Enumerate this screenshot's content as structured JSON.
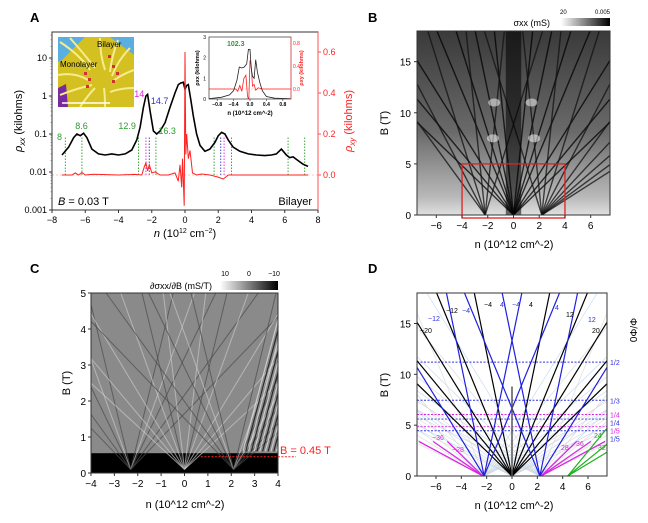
{
  "chart_data": [
    {
      "panel": "A",
      "type": "line",
      "panel_label": "A",
      "xlabel": "n (10^12 cm^-2)",
      "xlabel_parts": {
        "var": "n",
        "pre": " (10",
        "sup1": "12",
        "mid": " cm",
        "sup2": "−2",
        "post": ")"
      },
      "ylabel_left": "ρxx (kilohms)",
      "ylabel_left_parts": {
        "sym": "ρ",
        "sub": "xx",
        "rest": " (kilohms)"
      },
      "ylabel_right": "ρxy (kilohms)",
      "ylabel_right_parts": {
        "sym": "ρ",
        "sub": "xy",
        "rest": " (kilohms)"
      },
      "xlim": [
        -8,
        8
      ],
      "ylim_left": [
        0.001,
        50
      ],
      "yscale_left": "log",
      "ylim_right": [
        -0.17,
        0.72
      ],
      "xticks": [
        "−8",
        "−6",
        "−4",
        "−2",
        "0",
        "2",
        "4",
        "6",
        "8"
      ],
      "xtick_values": [
        -8,
        -6,
        -4,
        -2,
        0,
        2,
        4,
        6,
        8
      ],
      "yticks_left": [
        "0.001",
        "0.01",
        "0.1",
        "1",
        "10"
      ],
      "ytick_left_values": [
        0.001,
        0.01,
        0.1,
        1,
        10
      ],
      "yticks_right": [
        "0.0",
        "0.2",
        "0.4",
        "0.6"
      ],
      "ytick_right_values": [
        0.0,
        0.2,
        0.4,
        0.6
      ],
      "annotation_field": "B = 0.03 T",
      "annotation_field_parts": {
        "var": "B",
        "rest": " = 0.03 T"
      },
      "annotation_sample": "Bilayer",
      "series": [
        {
          "name": "ρxx",
          "color": "#000000",
          "axis": "left",
          "x": [
            -7.4,
            -7.0,
            -6.7,
            -6.5,
            -6.3,
            -6.1,
            -5.9,
            -5.6,
            -5.2,
            -4.8,
            -4.4,
            -4.0,
            -3.6,
            -3.2,
            -2.9,
            -2.7,
            -2.5,
            -2.35,
            -2.25,
            -2.1,
            -1.9,
            -1.7,
            -1.5,
            -1.2,
            -0.9,
            -0.6,
            -0.4,
            -0.25,
            -0.1,
            0.0,
            0.1,
            0.2,
            0.35,
            0.5,
            0.7,
            0.9,
            1.2,
            1.5,
            1.8,
            2.0,
            2.2,
            2.4,
            2.6,
            2.9,
            3.3,
            3.8,
            4.3,
            4.8,
            5.2,
            5.5,
            5.8,
            6.1,
            6.3,
            6.5,
            6.8,
            7.1,
            7.4
          ],
          "y": [
            0.028,
            0.045,
            0.08,
            0.1,
            0.09,
            0.105,
            0.08,
            0.04,
            0.03,
            0.028,
            0.03,
            0.028,
            0.03,
            0.038,
            0.07,
            0.15,
            0.5,
            1.0,
            1.1,
            0.4,
            0.12,
            0.1,
            0.12,
            0.2,
            0.5,
            1.2,
            2.0,
            2.2,
            2.3,
            1.5,
            1.9,
            2.0,
            0.8,
            0.3,
            0.1,
            0.05,
            0.035,
            0.04,
            0.06,
            0.09,
            0.11,
            0.1,
            0.07,
            0.045,
            0.035,
            0.03,
            0.028,
            0.027,
            0.028,
            0.03,
            0.04,
            0.028,
            0.024,
            0.025,
            0.02,
            0.016,
            0.014
          ]
        },
        {
          "name": "ρxy",
          "color": "#ff2020",
          "axis": "right",
          "x": [
            -7.4,
            -6.8,
            -6.6,
            -6.4,
            -6.2,
            -6.0,
            -5.5,
            -4.0,
            -3.0,
            -2.6,
            -2.45,
            -2.35,
            -2.25,
            -2.15,
            -2.0,
            -1.8,
            -1.5,
            -1.0,
            -0.6,
            -0.4,
            -0.3,
            -0.2,
            -0.15,
            -0.05,
            0.0,
            0.05,
            0.1,
            0.2,
            0.3,
            0.45,
            0.7,
            1.0,
            1.5,
            2.0,
            2.3,
            2.6,
            3.0,
            4.0,
            5.0,
            6.0,
            7.4
          ],
          "y": [
            0.0,
            0.0,
            0.01,
            0.0,
            0.012,
            0.0,
            0.004,
            0.0,
            0.003,
            0.0,
            0.04,
            0.06,
            0.02,
            0.05,
            0.01,
            0.015,
            0.0,
            0.0,
            0.01,
            -0.03,
            0.05,
            -0.06,
            0.08,
            -0.15,
            0.6,
            0.1,
            0.2,
            0.08,
            0.12,
            0.01,
            0.0,
            0.005,
            0.0,
            -0.01,
            -0.02,
            0.0,
            0.0,
            0.0,
            0.0,
            0.0,
            0.0
          ]
        }
      ],
      "peak_labels": [
        {
          "text": "8",
          "x": -7.2,
          "color": "#2a9d2a"
        },
        {
          "text": "8.6",
          "x": -6.2,
          "color": "#2a9d2a"
        },
        {
          "text": "12.9",
          "x": -2.8,
          "color": "#2a9d2a"
        },
        {
          "text": "14",
          "x": -2.35,
          "color": "#e020e0"
        },
        {
          "text": "14.7",
          "x": -2.15,
          "color": "#3030e0"
        },
        {
          "text": "16.3",
          "x": -1.75,
          "color": "#2a9d2a"
        }
      ],
      "dotted_markers": [
        {
          "x": -7.2,
          "color": "#2a9d2a"
        },
        {
          "x": -6.2,
          "color": "#2a9d2a"
        },
        {
          "x": -2.8,
          "color": "#2a9d2a"
        },
        {
          "x": -2.35,
          "color": "#e020e0"
        },
        {
          "x": -2.15,
          "color": "#3030e0"
        },
        {
          "x": -1.75,
          "color": "#2a9d2a"
        },
        {
          "x": 1.75,
          "color": "#2a9d2a"
        },
        {
          "x": 2.15,
          "color": "#3030e0"
        },
        {
          "x": 2.35,
          "color": "#e020e0"
        },
        {
          "x": 2.8,
          "color": "#2a9d2a"
        },
        {
          "x": 6.2,
          "color": "#2a9d2a"
        },
        {
          "x": 7.2,
          "color": "#2a9d2a"
        }
      ],
      "photo_inset": {
        "labels": [
          "Bilayer",
          "Monolayer"
        ]
      },
      "inset_chart": {
        "xlim": [
          -1.0,
          1.0
        ],
        "ylim_left": [
          0,
          3
        ],
        "ylim_right": [
          -0.25,
          0.9
        ],
        "xticks": [
          "−0.8",
          "−0.4",
          "0.0",
          "0.4",
          "0.8"
        ],
        "xtick_values": [
          -0.8,
          -0.4,
          0.0,
          0.4,
          0.8
        ],
        "yticks_left": [
          "0",
          "1",
          "2",
          "3"
        ],
        "ytick_left_values": [
          0,
          1,
          2,
          3
        ],
        "yticks_right": [
          "0.0",
          "0.4",
          "0.8"
        ],
        "ytick_right_values": [
          0.0,
          0.4,
          0.8
        ],
        "xlabel": "n (10^12 cm^-2)",
        "ylabel_left": "ρxx (kilohms)",
        "ylabel_right": "ρxy (kilohms)",
        "annotation": "102.3",
        "annotation_color": "#2a9d2a",
        "series_xx": {
          "x": [
            -1.0,
            -0.7,
            -0.5,
            -0.4,
            -0.32,
            -0.26,
            -0.2,
            -0.14,
            -0.08,
            -0.04,
            0.0,
            0.03,
            0.06,
            0.1,
            0.14,
            0.18,
            0.24,
            0.3,
            0.4,
            0.6,
            1.0
          ],
          "y": [
            0.02,
            0.08,
            0.2,
            0.4,
            0.9,
            1.55,
            1.5,
            1.55,
            1.7,
            2.4,
            2.4,
            1.5,
            1.1,
            1.0,
            1.9,
            1.3,
            0.8,
            0.4,
            0.12,
            0.04,
            0.01
          ]
        },
        "series_xy": {
          "x": [
            -1.0,
            -0.5,
            -0.35,
            -0.3,
            -0.25,
            -0.2,
            -0.15,
            -0.1,
            -0.06,
            -0.03,
            0.0,
            0.03,
            0.06,
            0.1,
            0.14,
            0.2,
            0.3,
            0.5,
            1.0
          ],
          "y": [
            0.0,
            0.0,
            0.0,
            -0.04,
            0.06,
            -0.04,
            0.18,
            0.24,
            -0.12,
            -0.2,
            0.5,
            0.4,
            0.05,
            0.08,
            -0.02,
            0.02,
            0.0,
            0.0,
            0.0
          ]
        }
      }
    },
    {
      "panel": "B",
      "type": "heatmap",
      "panel_label": "B",
      "xlabel": "n (10^12 cm^-2)",
      "ylabel": "B (T)",
      "xlim": [
        -7.5,
        7.5
      ],
      "ylim": [
        0,
        18
      ],
      "xticks": [
        "−6",
        "−4",
        "−2",
        "0",
        "2",
        "4",
        "6"
      ],
      "xtick_values": [
        -6,
        -4,
        -2,
        0,
        2,
        4,
        6
      ],
      "yticks": [
        "0",
        "5",
        "10",
        "15"
      ],
      "ytick_values": [
        0,
        5,
        10,
        15
      ],
      "colorbar": {
        "label": "σxx (mS)",
        "min_label": "20",
        "max_label": "0.005",
        "scale": "white-to-black"
      },
      "highlight_box": {
        "n_range": [
          -4,
          4
        ],
        "B_range": [
          0,
          5
        ],
        "color": "#e02020"
      }
    },
    {
      "panel": "C",
      "type": "heatmap",
      "panel_label": "C",
      "xlabel": "n (10^12 cm^-2)",
      "ylabel": "B (T)",
      "xlim": [
        -4,
        4
      ],
      "ylim": [
        0,
        5
      ],
      "xticks": [
        "−4",
        "−3",
        "−2",
        "−1",
        "0",
        "1",
        "2",
        "3",
        "4"
      ],
      "xtick_values": [
        -4,
        -3,
        -2,
        -1,
        0,
        1,
        2,
        3,
        4
      ],
      "yticks": [
        "0",
        "1",
        "2",
        "3",
        "4",
        "5"
      ],
      "ytick_values": [
        0,
        1,
        2,
        3,
        4,
        5
      ],
      "colorbar": {
        "label": "∂σxx/∂B (mS/T)",
        "ticks": [
          "10",
          "0",
          "−10"
        ],
        "scale": "white-to-black"
      },
      "annotation": {
        "text": "B = 0.45 T",
        "B": 0.45,
        "n_start": 0.7,
        "color": "#ff2020"
      }
    },
    {
      "panel": "D",
      "type": "line",
      "panel_label": "D",
      "xlabel": "n (10^12 cm^-2)",
      "ylabel": "B (T)",
      "ylabel_right": "Φ/Φ0",
      "xlim": [
        -7.5,
        7.5
      ],
      "ylim": [
        0,
        18
      ],
      "xticks": [
        "−6",
        "−4",
        "−2",
        "0",
        "2",
        "4",
        "6"
      ],
      "xtick_values": [
        -6,
        -4,
        -2,
        0,
        2,
        4,
        6
      ],
      "yticks": [
        "0",
        "5",
        "10",
        "15"
      ],
      "ytick_values": [
        0,
        5,
        10,
        15
      ],
      "flux_lines": [
        {
          "label": "1/2",
          "B": 11.2,
          "color": "#3030e0"
        },
        {
          "label": "1/3",
          "B": 7.45,
          "color": "#3030e0"
        },
        {
          "label": "1/4",
          "B": 6.05,
          "color": "#e020e0"
        },
        {
          "label": "1/4",
          "B": 5.6,
          "color": "#3030e0"
        },
        {
          "label": "1/5",
          "B": 4.85,
          "color": "#e020e0"
        },
        {
          "label": "1/5",
          "B": 4.45,
          "color": "#3030e0"
        }
      ],
      "fan_labels": [
        {
          "text": "−12",
          "color": "#3030e0"
        },
        {
          "text": "−20",
          "color": "#000000"
        },
        {
          "text": "−12",
          "color": "#000000"
        },
        {
          "text": "−4",
          "color": "#3030e0"
        },
        {
          "text": "−4",
          "color": "#000000"
        },
        {
          "text": "4",
          "color": "#3030e0"
        },
        {
          "text": "−4",
          "color": "#3030e0"
        },
        {
          "text": "4",
          "color": "#000000"
        },
        {
          "text": "4",
          "color": "#3030e0"
        },
        {
          "text": "12",
          "color": "#000000"
        },
        {
          "text": "12",
          "color": "#3030e0"
        },
        {
          "text": "20",
          "color": "#000000"
        },
        {
          "text": "−36",
          "color": "#e020e0"
        },
        {
          "text": "−28",
          "color": "#e020e0"
        },
        {
          "text": "28",
          "color": "#e020e0"
        },
        {
          "text": "36",
          "color": "#e020e0"
        },
        {
          "text": "24",
          "color": "#2a9d2a"
        },
        {
          "text": "32",
          "color": "#2a9d2a"
        }
      ],
      "fans": [
        {
          "origin_n": 0,
          "color": "#000000",
          "nu_values": [
            -20,
            -16,
            -12,
            -8,
            -4,
            4,
            8,
            12,
            16,
            20
          ]
        },
        {
          "origin_n": -2.2,
          "color": "#2020e0",
          "nu_values": [
            -12,
            -4,
            4,
            8
          ]
        },
        {
          "origin_n": 2.2,
          "color": "#2020e0",
          "nu_values": [
            -8,
            -4,
            4,
            12
          ]
        },
        {
          "origin_n": -2.3,
          "color": "#e020e0",
          "nu_values": [
            -36,
            -28,
            -20
          ]
        },
        {
          "origin_n": 2.3,
          "color": "#e020e0",
          "nu_values": [
            20,
            28,
            36
          ]
        },
        {
          "origin_n": 4.4,
          "color": "#20b020",
          "nu_values": [
            16,
            24,
            32
          ]
        }
      ]
    }
  ]
}
